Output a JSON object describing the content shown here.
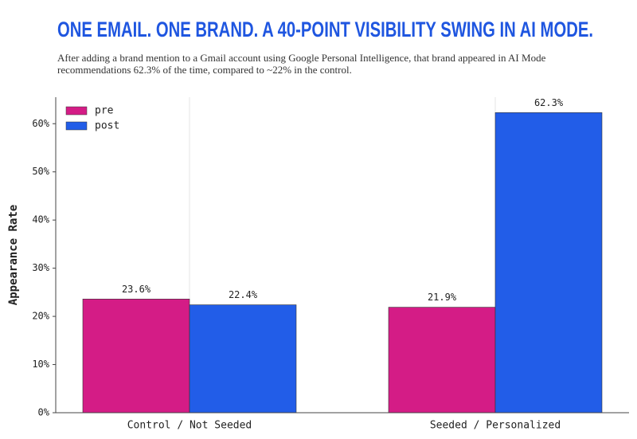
{
  "chart_data": {
    "type": "grouped-bar",
    "title": "ONE EMAIL. ONE BRAND. A 40-POINT VISIBILITY SWING IN AI MODE.",
    "subtitle": "After adding a brand mention to a Gmail account using Google Personal Intelligence, that brand appeared in AI Mode recommendations 62.3% of the time, compared to ~22% in the control.",
    "y_label": "Appearance Rate",
    "categories": [
      "Control / Not Seeded",
      "Seeded / Personalized"
    ],
    "series": [
      {
        "name": "pre",
        "color": "#d41c86",
        "values": [
          23.6,
          21.9
        ],
        "value_labels": [
          "23.6%",
          "21.9%"
        ]
      },
      {
        "name": "post",
        "color": "#225de8",
        "values": [
          22.4,
          62.3
        ],
        "value_labels": [
          "22.4%",
          "62.3%"
        ]
      }
    ],
    "ylim": [
      0,
      65.5
    ],
    "yticks": [
      {
        "value": 0,
        "label": "0%"
      },
      {
        "value": 10,
        "label": "10%"
      },
      {
        "value": 20,
        "label": "20%"
      },
      {
        "value": 30,
        "label": "30%"
      },
      {
        "value": 40,
        "label": "40%"
      },
      {
        "value": 50,
        "label": "50%"
      },
      {
        "value": 60,
        "label": "60%"
      }
    ],
    "legend": "upper-left"
  }
}
